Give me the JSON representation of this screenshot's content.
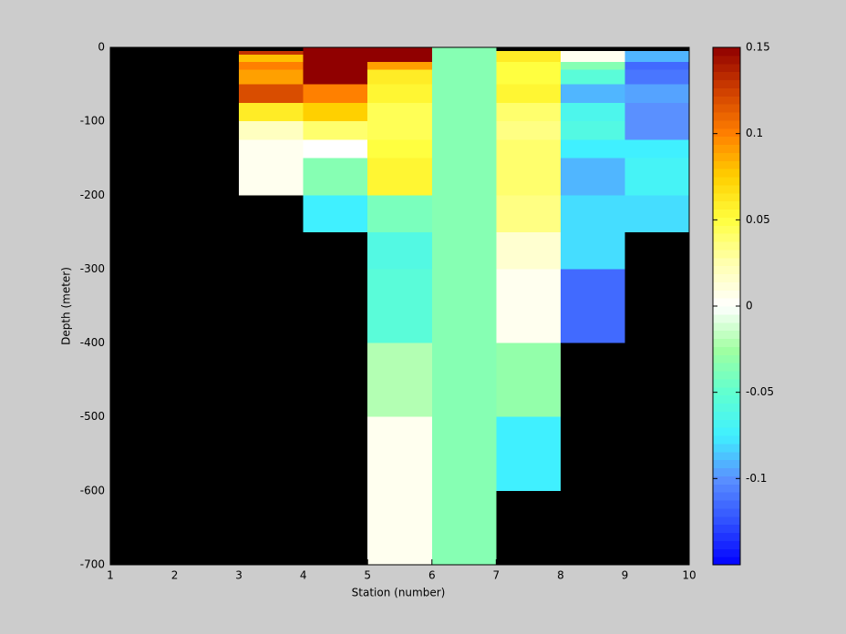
{
  "chart_data": {
    "type": "heatmap",
    "xlabel": "Station (number)",
    "ylabel": "Depth (meter)",
    "x_edges": [
      1,
      2,
      3,
      4,
      5,
      6,
      7,
      8,
      9,
      10
    ],
    "y_edges": [
      0,
      -5,
      -10,
      -20,
      -30,
      -50,
      -75,
      -100,
      -125,
      -150,
      -200,
      -250,
      -300,
      -400,
      -500,
      -600,
      -700
    ],
    "values": [
      [
        null,
        null,
        null,
        0.15,
        0.15,
        -0.035,
        null,
        null,
        null
      ],
      [
        null,
        null,
        0.13,
        0.15,
        0.15,
        -0.035,
        0.06,
        0.005,
        -0.09
      ],
      [
        null,
        null,
        0.08,
        0.15,
        0.15,
        -0.035,
        0.06,
        0.005,
        -0.09
      ],
      [
        null,
        null,
        0.1,
        0.15,
        0.09,
        -0.035,
        0.05,
        -0.035,
        -0.115
      ],
      [
        null,
        null,
        0.09,
        0.15,
        0.06,
        -0.035,
        0.05,
        -0.055,
        -0.11
      ],
      [
        null,
        null,
        0.12,
        0.1,
        0.055,
        -0.035,
        0.055,
        -0.09,
        -0.095
      ],
      [
        null,
        null,
        0.06,
        0.075,
        0.045,
        -0.035,
        0.04,
        -0.065,
        -0.1
      ],
      [
        null,
        null,
        0.02,
        0.04,
        0.045,
        -0.035,
        0.035,
        -0.06,
        -0.1
      ],
      [
        null,
        null,
        0.005,
        0.0,
        0.05,
        -0.035,
        0.04,
        -0.075,
        -0.075
      ],
      [
        null,
        null,
        0.005,
        -0.035,
        0.055,
        -0.035,
        0.04,
        -0.09,
        -0.07
      ],
      [
        null,
        null,
        null,
        -0.075,
        -0.04,
        -0.035,
        0.035,
        -0.08,
        -0.08
      ],
      [
        null,
        null,
        null,
        null,
        -0.06,
        -0.035,
        0.015,
        -0.08,
        null
      ],
      [
        null,
        null,
        null,
        null,
        -0.055,
        -0.035,
        0.005,
        -0.115,
        null
      ],
      [
        null,
        null,
        null,
        null,
        -0.02,
        -0.035,
        -0.03,
        null,
        null
      ],
      [
        null,
        null,
        null,
        null,
        0.005,
        -0.035,
        -0.075,
        null,
        null
      ],
      [
        null,
        null,
        null,
        null,
        0.005,
        -0.035,
        null,
        null,
        null
      ]
    ],
    "xlim": [
      1,
      10
    ],
    "ylim": [
      -700,
      0
    ],
    "xticks": [
      1,
      2,
      3,
      4,
      5,
      6,
      7,
      8,
      9,
      10
    ],
    "yticks": [
      0,
      -100,
      -200,
      -300,
      -400,
      -500,
      -600,
      -700
    ],
    "clim": [
      -0.15,
      0.15
    ],
    "cticks": [
      -0.1,
      -0.05,
      0,
      0.05,
      0.1,
      0.15
    ],
    "colormap": [
      "#0000ff",
      "#3050ff",
      "#5a90ff",
      "#40f0ff",
      "#60ffd0",
      "#a0ffa0",
      "#ffffff",
      "#ffffb0",
      "#ffff40",
      "#ffd000",
      "#ff8000",
      "#d04000",
      "#900000"
    ],
    "missing_color": "#000000"
  }
}
